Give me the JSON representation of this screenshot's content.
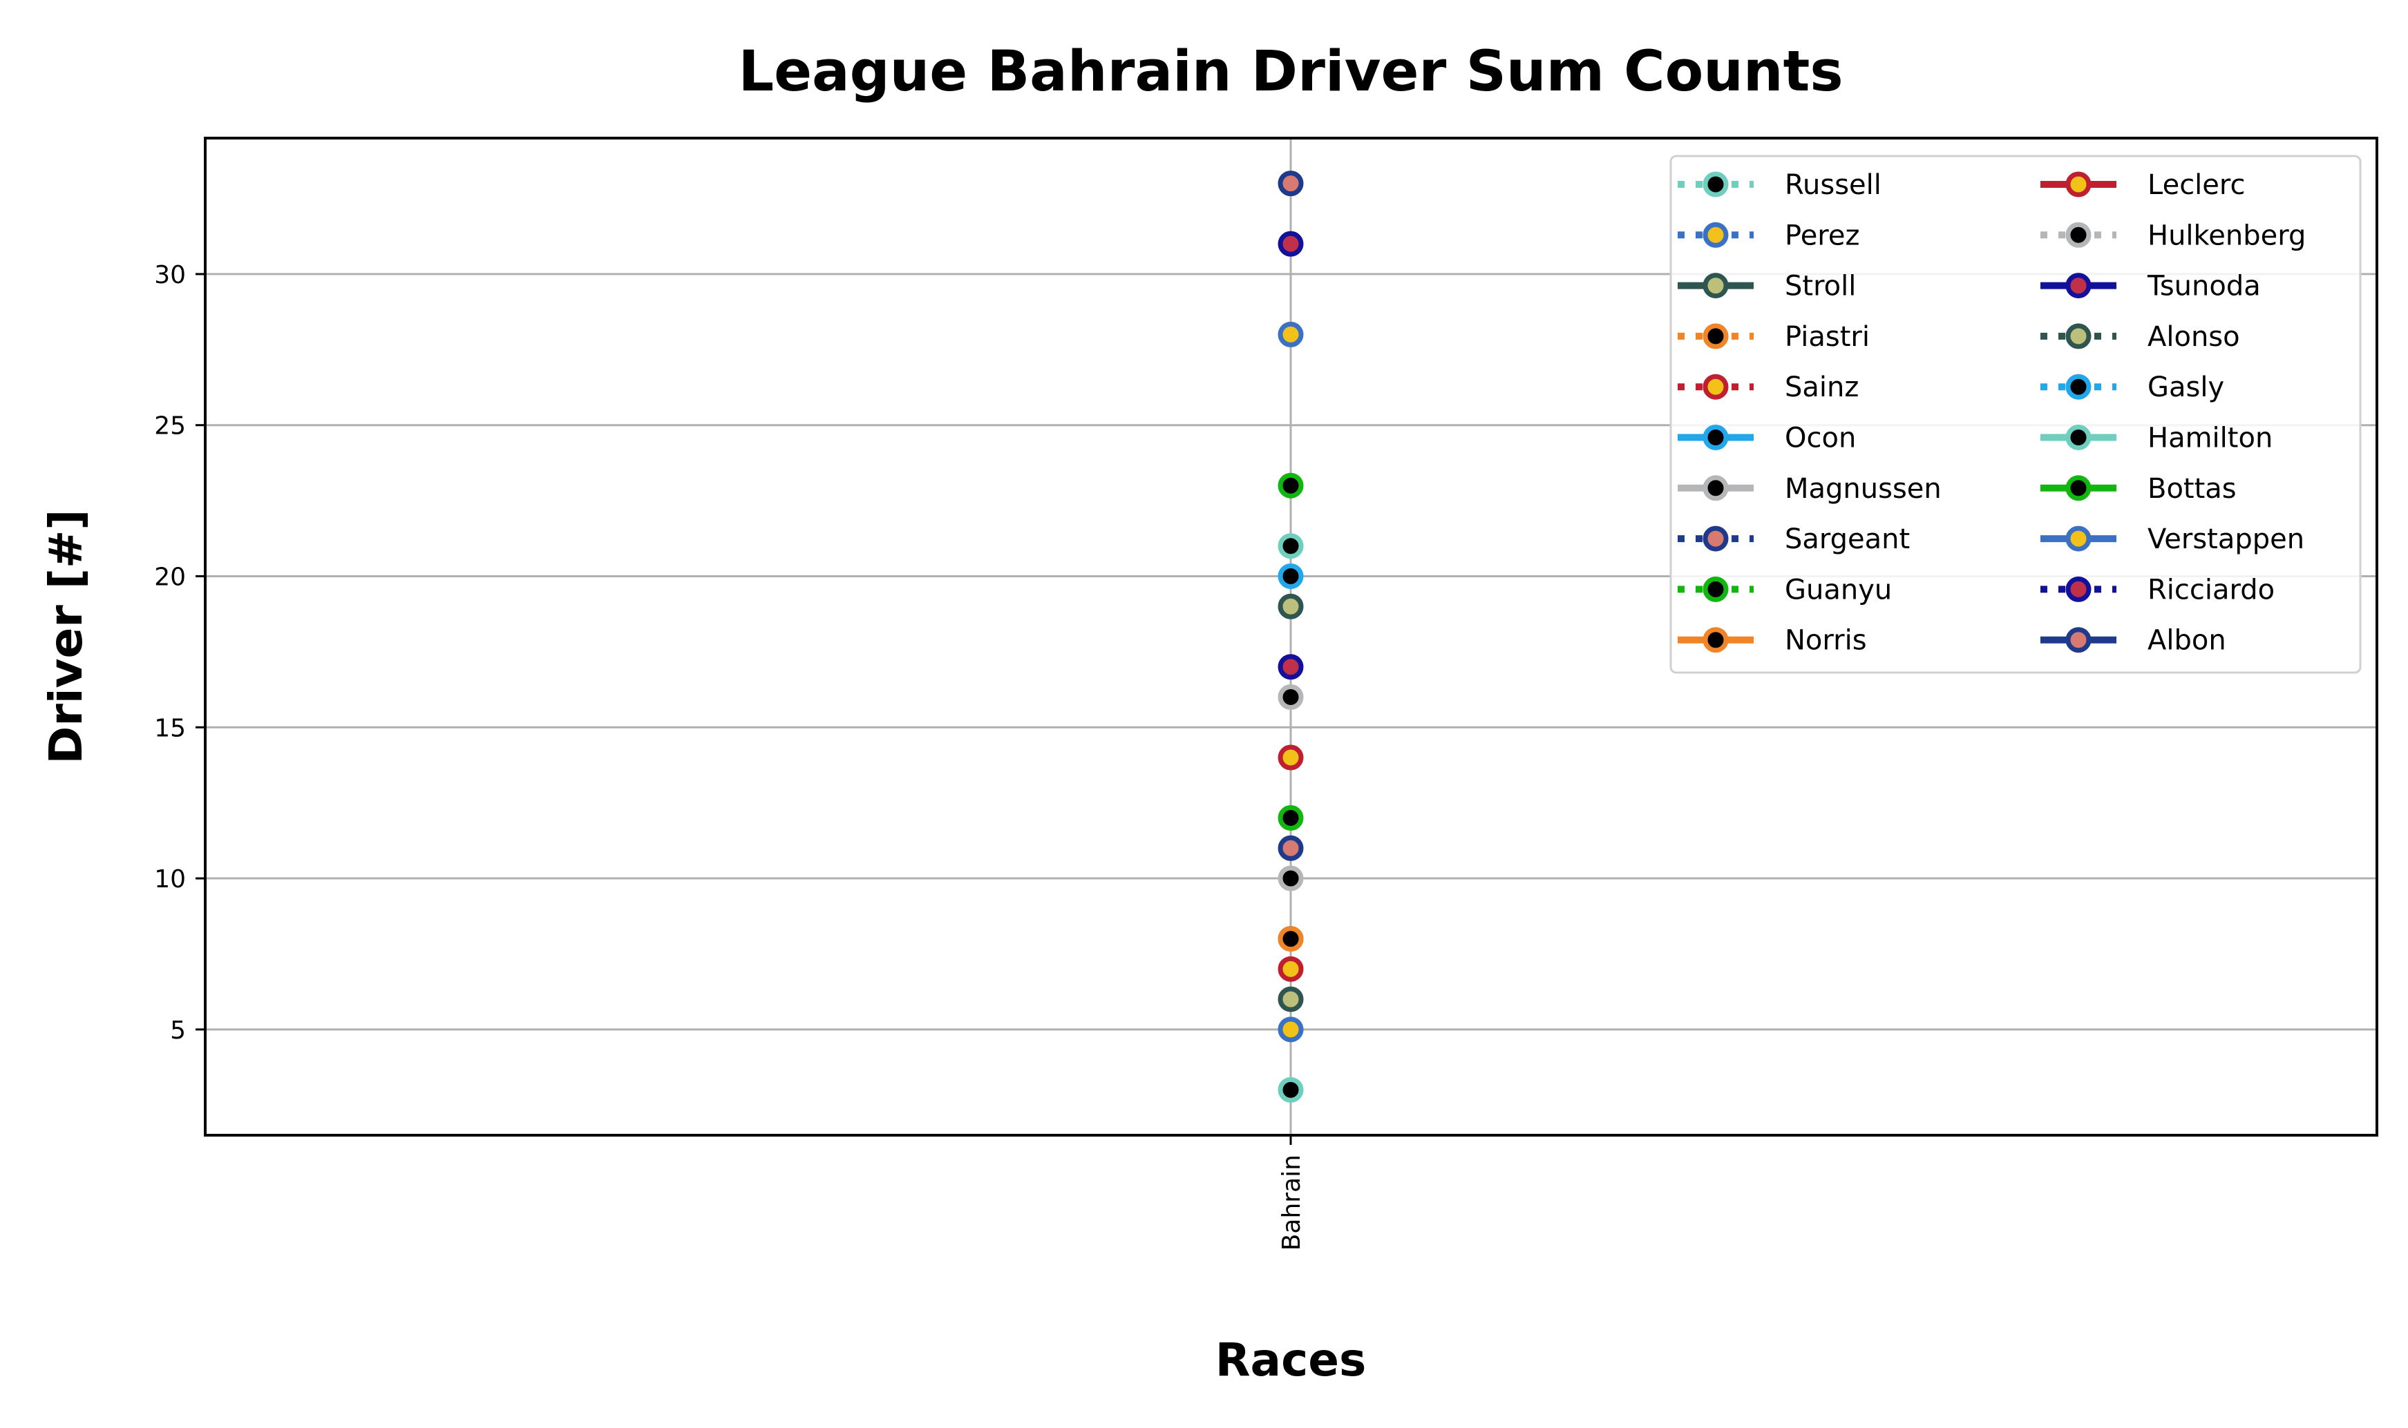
{
  "chart_data": {
    "type": "line",
    "title": "League Bahrain Driver Sum Counts",
    "xlabel": "Races",
    "ylabel": "Driver [#]",
    "categories": [
      "Bahrain"
    ],
    "ylim": [
      1.5,
      34.5
    ],
    "yticks": [
      5,
      10,
      15,
      20,
      25,
      30
    ],
    "grid": true,
    "legend": {
      "placement": "top-right",
      "columns": 2
    },
    "series": [
      {
        "name": "Russell",
        "values": [
          3
        ],
        "line_color": "#6fcfbf",
        "marker_face": "#000000",
        "line_style": "dotted"
      },
      {
        "name": "Perez",
        "values": [
          5
        ],
        "line_color": "#3a71c5",
        "marker_face": "#f3c218",
        "line_style": "dotted"
      },
      {
        "name": "Stroll",
        "values": [
          6
        ],
        "line_color": "#2f5550",
        "marker_face": "#bcc07a",
        "line_style": "solid"
      },
      {
        "name": "Piastri",
        "values": [
          8
        ],
        "line_color": "#f08427",
        "marker_face": "#000000",
        "line_style": "dotted"
      },
      {
        "name": "Sainz",
        "values": [
          7
        ],
        "line_color": "#bf1f2e",
        "marker_face": "#f3c218",
        "line_style": "dotted"
      },
      {
        "name": "Ocon",
        "values": [
          8
        ],
        "line_color": "#22a8ea",
        "marker_face": "#000000",
        "line_style": "solid"
      },
      {
        "name": "Magnussen",
        "values": [
          10
        ],
        "line_color": "#b5b6b8",
        "marker_face": "#000000",
        "line_style": "solid"
      },
      {
        "name": "Sargeant",
        "values": [
          11
        ],
        "line_color": "#1f3a8a",
        "marker_face": "#d77a72",
        "line_style": "dotted"
      },
      {
        "name": "Guanyu",
        "values": [
          12
        ],
        "line_color": "#11b60e",
        "marker_face": "#000000",
        "line_style": "dotted"
      },
      {
        "name": "Norris",
        "values": [
          8
        ],
        "line_color": "#f08427",
        "marker_face": "#000000",
        "line_style": "solid"
      },
      {
        "name": "Leclerc",
        "values": [
          14
        ],
        "line_color": "#bf1f2e",
        "marker_face": "#f3c218",
        "line_style": "solid"
      },
      {
        "name": "Hulkenberg",
        "values": [
          16
        ],
        "line_color": "#b5b6b8",
        "marker_face": "#000000",
        "line_style": "dotted"
      },
      {
        "name": "Tsunoda",
        "values": [
          17
        ],
        "line_color": "#13109a",
        "marker_face": "#c1304a",
        "line_style": "solid"
      },
      {
        "name": "Alonso",
        "values": [
          19
        ],
        "line_color": "#2f5550",
        "marker_face": "#bcc07a",
        "line_style": "dotted"
      },
      {
        "name": "Gasly",
        "values": [
          20
        ],
        "line_color": "#22a8ea",
        "marker_face": "#000000",
        "line_style": "dotted"
      },
      {
        "name": "Hamilton",
        "values": [
          21
        ],
        "line_color": "#6fcfbf",
        "marker_face": "#000000",
        "line_style": "solid"
      },
      {
        "name": "Bottas",
        "values": [
          23
        ],
        "line_color": "#11b60e",
        "marker_face": "#000000",
        "line_style": "solid"
      },
      {
        "name": "Verstappen",
        "values": [
          28
        ],
        "line_color": "#3a71c5",
        "marker_face": "#f3c218",
        "line_style": "solid"
      },
      {
        "name": "Ricciardo",
        "values": [
          31
        ],
        "line_color": "#13109a",
        "marker_face": "#c1304a",
        "line_style": "dotted"
      },
      {
        "name": "Albon",
        "values": [
          33
        ],
        "line_color": "#1f3a8a",
        "marker_face": "#d77a72",
        "line_style": "solid"
      }
    ]
  }
}
